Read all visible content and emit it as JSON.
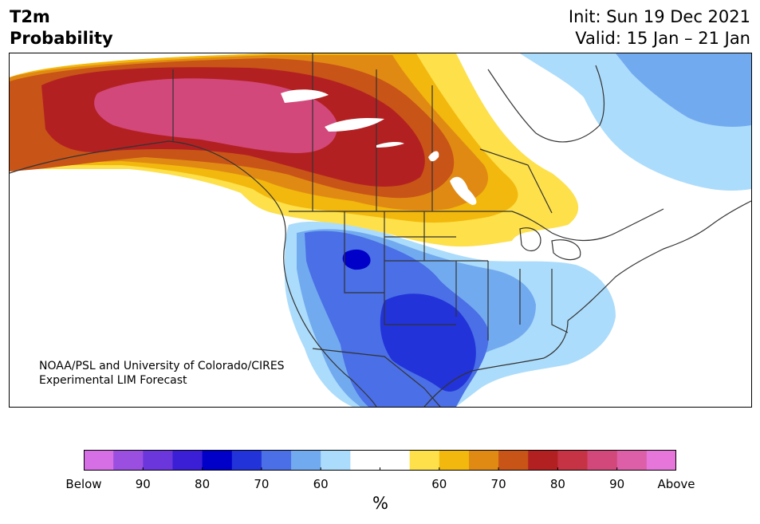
{
  "header": {
    "variable": "T2m",
    "quantity": "Probability",
    "init": "Init: Sun 19 Dec 2021",
    "valid": "Valid: 15 Jan – 21 Jan"
  },
  "credit": {
    "line1": "NOAA/PSL and University of Colorado/CIRES",
    "line2": "Experimental LIM Forecast"
  },
  "colorbar": {
    "colors": [
      "#d66ee6",
      "#9b4fe0",
      "#6b36db",
      "#3b1fd6",
      "#0000c9",
      "#2233d9",
      "#4a6fe6",
      "#72aaf0",
      "#acdcfb",
      "#ffffff",
      "#ffffff",
      "#fde04a",
      "#f2b80d",
      "#e08a14",
      "#c85417",
      "#b32022",
      "#c53345",
      "#d2487a",
      "#dc5fa8",
      "#e676d9"
    ],
    "tick_labels": [
      "Below",
      "90",
      "80",
      "70",
      "60",
      "",
      "60",
      "70",
      "80",
      "90",
      "Above"
    ],
    "unit": "%"
  },
  "palette": {
    "water_land": "#ffffff",
    "boundary": "#333333",
    "above_core": "#d2487a",
    "above_high": "#b32022",
    "above_mid": "#c85417",
    "above_low": "#e08a14",
    "above_weak": "#f2b80d",
    "above_faint": "#fde04a",
    "below_faint": "#acdcfb",
    "below_low": "#72aaf0",
    "below_mid": "#4a6fe6",
    "below_high": "#2233d9",
    "below_core": "#0000c9"
  }
}
